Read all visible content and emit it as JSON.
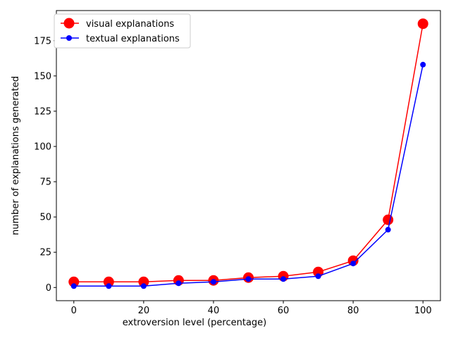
{
  "chart_data": {
    "type": "line",
    "title": "",
    "xlabel": "extroversion level (percentage)",
    "ylabel": "number of explanations generated",
    "x": [
      0,
      10,
      20,
      30,
      40,
      50,
      60,
      70,
      80,
      90,
      100
    ],
    "xlim": [
      -5,
      105
    ],
    "ylim": [
      -9.35,
      196.35
    ],
    "xticks": [
      0,
      20,
      40,
      60,
      80,
      100
    ],
    "yticks": [
      0,
      25,
      50,
      75,
      100,
      125,
      150,
      175
    ],
    "grid": false,
    "legend_position": "top-left",
    "series": [
      {
        "name": "visual explanations",
        "color": "#ff0000",
        "marker": "large-circle",
        "values": [
          4,
          4,
          4,
          5,
          5,
          7,
          8,
          11,
          19,
          48,
          187
        ]
      },
      {
        "name": "textual explanations",
        "color": "#0000ff",
        "marker": "small-circle",
        "values": [
          1,
          1,
          1,
          3,
          4,
          6,
          6,
          8,
          17,
          41,
          158
        ]
      }
    ]
  }
}
